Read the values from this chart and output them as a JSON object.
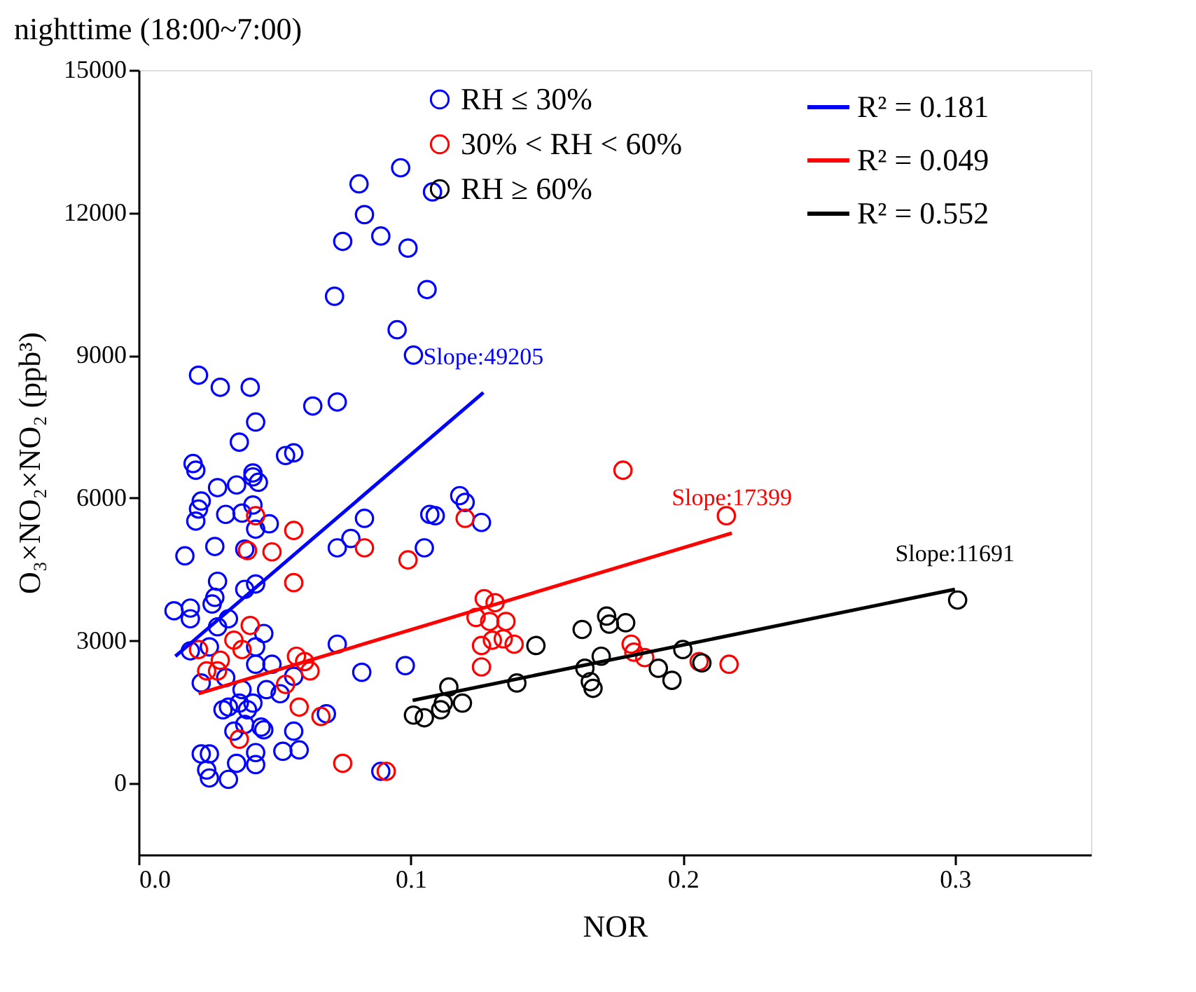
{
  "chart_data": {
    "type": "scatter",
    "title": "nighttime (18:00~7:00)",
    "xlabel": "NOR",
    "ylabel": "O₃×NO₂×NO₂ (ppb³)",
    "xlim": [
      0,
      0.35
    ],
    "ylim": [
      -1500,
      15000
    ],
    "xticks": [
      {
        "value": 0,
        "label": "0.0"
      },
      0.1,
      0.2,
      0.3
    ],
    "yticks": [
      0,
      3000,
      6000,
      9000,
      12000,
      15000
    ],
    "grid": false,
    "legend": "top right",
    "marker": "circle",
    "series": [
      {
        "name": "RH ≤ 30%",
        "color": "#0000ff",
        "x": [
          0.0963,
          0.081,
          0.108,
          0.083,
          0.089,
          0.099,
          0.075,
          0.106,
          0.072,
          0.095,
          0.101,
          0.022,
          0.03,
          0.041,
          0.043,
          0.064,
          0.073,
          0.037,
          0.054,
          0.057,
          0.02,
          0.021,
          0.042,
          0.044,
          0.029,
          0.036,
          0.042,
          0.023,
          0.022,
          0.021,
          0.032,
          0.038,
          0.042,
          0.048,
          0.083,
          0.107,
          0.109,
          0.118,
          0.12,
          0.126,
          0.043,
          0.017,
          0.028,
          0.039,
          0.073,
          0.078,
          0.105,
          0.029,
          0.043,
          0.039,
          0.028,
          0.027,
          0.013,
          0.019,
          0.019,
          0.029,
          0.033,
          0.046,
          0.073,
          0.019,
          0.026,
          0.043,
          0.043,
          0.049,
          0.023,
          0.032,
          0.038,
          0.047,
          0.052,
          0.057,
          0.037,
          0.042,
          0.031,
          0.033,
          0.04,
          0.069,
          0.035,
          0.039,
          0.045,
          0.046,
          0.057,
          0.082,
          0.098,
          0.023,
          0.026,
          0.025,
          0.026,
          0.033,
          0.036,
          0.043,
          0.043,
          0.053,
          0.059,
          0.089
        ],
        "values": [
          12945,
          12607,
          12438,
          11960,
          11509,
          11256,
          11397,
          10384,
          10243,
          9539,
          9005,
          8583,
          8329,
          8329,
          7598,
          7935,
          8020,
          7176,
          6894,
          6950,
          6725,
          6585,
          6528,
          6331,
          6219,
          6275,
          6444,
          5937,
          5769,
          5515,
          5656,
          5684,
          5853,
          5459,
          5572,
          5656,
          5628,
          6050,
          5909,
          5487,
          5346,
          4784,
          4981,
          4925,
          4953,
          5150,
          4953,
          4249,
          4193,
          4080,
          3911,
          3771,
          3630,
          3686,
          3461,
          3292,
          3461,
          3152,
          2927,
          2786,
          2870,
          2870,
          2504,
          2504,
          2110,
          2223,
          1970,
          1970,
          1885,
          2251,
          1688,
          1688,
          1548,
          1604,
          1548,
          1463,
          1097,
          1238,
          1182,
          1126,
          1097,
          2336,
          2476,
          619,
          619,
          281,
          113,
          84,
          422,
          647,
          394,
          675,
          703,
          253
        ]
      },
      {
        "name": "30% < RH < 60%",
        "color": "#ff0000",
        "x": [
          0.043,
          0.057,
          0.04,
          0.049,
          0.083,
          0.099,
          0.057,
          0.12,
          0.041,
          0.035,
          0.038,
          0.022,
          0.03,
          0.025,
          0.029,
          0.058,
          0.061,
          0.063,
          0.054,
          0.059,
          0.067,
          0.037,
          0.075,
          0.091,
          0.178,
          0.216,
          0.127,
          0.131,
          0.124,
          0.129,
          0.135,
          0.126,
          0.13,
          0.134,
          0.138,
          0.126,
          0.181,
          0.186,
          0.182,
          0.206,
          0.217
        ],
        "values": [
          5628,
          5318,
          4896,
          4868,
          4953,
          4699,
          4221,
          5572,
          3320,
          3011,
          2814,
          2814,
          2589,
          2364,
          2364,
          2673,
          2561,
          2364,
          2082,
          1604,
          1407,
          929,
          422,
          253,
          6585,
          5628,
          3883,
          3799,
          3489,
          3405,
          3405,
          2898,
          3011,
          3039,
          2927,
          2448,
          2927,
          2645,
          2758,
          2561,
          2504
        ]
      },
      {
        "name": "RH ≥ 60%",
        "color": "#000000",
        "x": [
          0.146,
          0.163,
          0.172,
          0.173,
          0.179,
          0.17,
          0.164,
          0.166,
          0.167,
          0.139,
          0.191,
          0.196,
          0.2,
          0.207,
          0.114,
          0.119,
          0.112,
          0.111,
          0.101,
          0.105,
          0.301
        ],
        "values": [
          2898,
          3236,
          3517,
          3348,
          3377,
          2673,
          2420,
          2139,
          1998,
          2110,
          2420,
          2167,
          2814,
          2533,
          2026,
          1688,
          1688,
          1548,
          1435,
          1379,
          3855
        ]
      },
      {
        "name": "R² = 0.181",
        "color": "#0000ff",
        "type": "line",
        "marker": "none",
        "x": [
          0.0135,
          0.1267
        ],
        "values": [
          2673,
          8217
        ]
      },
      {
        "name": "R² = 0.049",
        "color": "#ff0000",
        "type": "line",
        "marker": "none",
        "x": [
          0.022,
          0.218
        ],
        "values": [
          1885,
          5262
        ]
      },
      {
        "name": "R² = 0.552",
        "color": "#000000",
        "type": "line",
        "marker": "none",
        "x": [
          0.1007,
          0.3
        ],
        "values": [
          1745,
          4080
        ]
      }
    ],
    "annotations": [
      "Slope:49205",
      "Slope:17399",
      "Slope:11691"
    ]
  }
}
